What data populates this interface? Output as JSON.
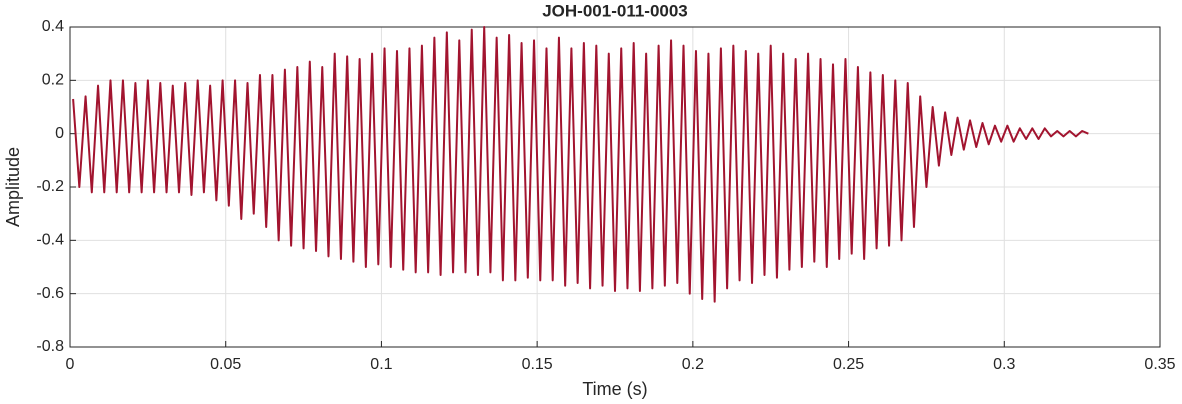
{
  "chart_data": {
    "type": "line",
    "title": "JOH-001-011-0003",
    "xlabel": "Time (s)",
    "ylabel": "Amplitude",
    "x": [
      0.001,
      0.003,
      0.005,
      0.007,
      0.009,
      0.011,
      0.013,
      0.015,
      0.017,
      0.019,
      0.021,
      0.023,
      0.025,
      0.027,
      0.029,
      0.031,
      0.033,
      0.035,
      0.037,
      0.039,
      0.041,
      0.043,
      0.045,
      0.047,
      0.049,
      0.051,
      0.053,
      0.055,
      0.057,
      0.059,
      0.061,
      0.063,
      0.065,
      0.067,
      0.069,
      0.071,
      0.073,
      0.075,
      0.077,
      0.079,
      0.081,
      0.083,
      0.085,
      0.087,
      0.089,
      0.091,
      0.093,
      0.095,
      0.097,
      0.099,
      0.101,
      0.103,
      0.105,
      0.107,
      0.109,
      0.111,
      0.113,
      0.115,
      0.117,
      0.119,
      0.121,
      0.123,
      0.125,
      0.127,
      0.129,
      0.131,
      0.133,
      0.135,
      0.137,
      0.139,
      0.141,
      0.143,
      0.145,
      0.147,
      0.149,
      0.151,
      0.153,
      0.155,
      0.157,
      0.159,
      0.161,
      0.163,
      0.165,
      0.167,
      0.169,
      0.171,
      0.173,
      0.175,
      0.177,
      0.179,
      0.181,
      0.183,
      0.185,
      0.187,
      0.189,
      0.191,
      0.193,
      0.195,
      0.197,
      0.199,
      0.201,
      0.203,
      0.205,
      0.207,
      0.209,
      0.211,
      0.213,
      0.215,
      0.217,
      0.219,
      0.221,
      0.223,
      0.225,
      0.227,
      0.229,
      0.231,
      0.233,
      0.235,
      0.237,
      0.239,
      0.241,
      0.243,
      0.245,
      0.247,
      0.249,
      0.251,
      0.253,
      0.255,
      0.257,
      0.259,
      0.261,
      0.263,
      0.265,
      0.267,
      0.269,
      0.271,
      0.273,
      0.275,
      0.277,
      0.279,
      0.281,
      0.283,
      0.285,
      0.287,
      0.289,
      0.291,
      0.293,
      0.295,
      0.297,
      0.299,
      0.301,
      0.303,
      0.305,
      0.307,
      0.309,
      0.311,
      0.313,
      0.315,
      0.317,
      0.319,
      0.321,
      0.323,
      0.325,
      0.327
    ],
    "series": [
      {
        "name": "Amplitude",
        "color": "#a2142f",
        "values": [
          0.13,
          -0.2,
          0.14,
          -0.22,
          0.18,
          -0.22,
          0.2,
          -0.22,
          0.2,
          -0.22,
          0.19,
          -0.22,
          0.2,
          -0.22,
          0.19,
          -0.22,
          0.18,
          -0.22,
          0.19,
          -0.23,
          0.2,
          -0.22,
          0.18,
          -0.25,
          0.2,
          -0.27,
          0.2,
          -0.32,
          0.19,
          -0.3,
          0.22,
          -0.35,
          0.22,
          -0.4,
          0.24,
          -0.42,
          0.25,
          -0.43,
          0.27,
          -0.44,
          0.25,
          -0.46,
          0.3,
          -0.47,
          0.29,
          -0.48,
          0.28,
          -0.5,
          0.3,
          -0.49,
          0.32,
          -0.5,
          0.31,
          -0.51,
          0.32,
          -0.52,
          0.33,
          -0.52,
          0.36,
          -0.53,
          0.38,
          -0.52,
          0.35,
          -0.52,
          0.39,
          -0.53,
          0.4,
          -0.52,
          0.36,
          -0.55,
          0.37,
          -0.55,
          0.34,
          -0.54,
          0.35,
          -0.55,
          0.32,
          -0.55,
          0.36,
          -0.57,
          0.32,
          -0.56,
          0.34,
          -0.58,
          0.33,
          -0.57,
          0.3,
          -0.59,
          0.32,
          -0.58,
          0.34,
          -0.59,
          0.3,
          -0.58,
          0.33,
          -0.57,
          0.35,
          -0.56,
          0.33,
          -0.6,
          0.31,
          -0.62,
          0.3,
          -0.63,
          0.32,
          -0.58,
          0.33,
          -0.55,
          0.31,
          -0.56,
          0.3,
          -0.53,
          0.33,
          -0.54,
          0.3,
          -0.51,
          0.28,
          -0.5,
          0.3,
          -0.48,
          0.28,
          -0.5,
          0.26,
          -0.47,
          0.28,
          -0.45,
          0.25,
          -0.47,
          0.23,
          -0.43,
          0.22,
          -0.42,
          0.2,
          -0.4,
          0.19,
          -0.35,
          0.14,
          -0.2,
          0.1,
          -0.12,
          0.08,
          -0.08,
          0.06,
          -0.06,
          0.05,
          -0.05,
          0.04,
          -0.04,
          0.03,
          -0.03,
          0.03,
          -0.03,
          0.02,
          -0.02,
          0.02,
          -0.02,
          0.02,
          -0.01,
          0.01,
          -0.01,
          0.01,
          -0.01,
          0.01,
          0
        ]
      }
    ],
    "xlim": [
      0,
      0.35
    ],
    "xticks": [
      0,
      0.05,
      0.1,
      0.15,
      0.2,
      0.25,
      0.3,
      0.35
    ],
    "ylim": [
      -0.8,
      0.4
    ],
    "yticks": [
      -0.8,
      -0.6,
      -0.4,
      -0.2,
      0,
      0.2,
      0.4
    ],
    "grid": true
  }
}
